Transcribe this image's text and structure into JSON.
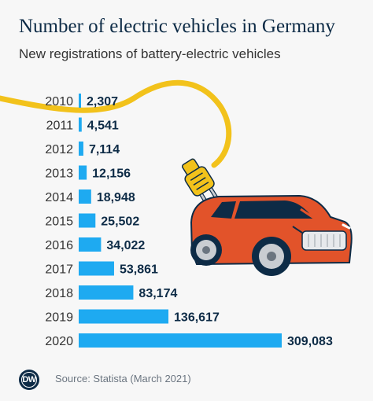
{
  "header": {
    "title": "Number of electric vehicles in Germany",
    "subtitle": "New registrations of battery-electric vehicles"
  },
  "chart_data": {
    "type": "bar",
    "orientation": "horizontal",
    "title": "Number of electric vehicles in Germany",
    "subtitle": "New registrations of battery-electric vehicles",
    "categories": [
      "2010",
      "2011",
      "2012",
      "2013",
      "2014",
      "2015",
      "2016",
      "2017",
      "2018",
      "2019",
      "2020"
    ],
    "values": [
      2307,
      4541,
      7114,
      12156,
      18948,
      25502,
      34022,
      53861,
      83174,
      136617,
      309083
    ],
    "value_labels": [
      "2,307",
      "4,541",
      "7,114",
      "12,156",
      "18,948",
      "25,502",
      "34,022",
      "53,861",
      "83,174",
      "136,617",
      "309,083"
    ],
    "xlabel": "",
    "ylabel": "",
    "xlim": [
      0,
      309083
    ],
    "grid": false,
    "legend": "none",
    "bar_color": "#1eaaf1",
    "text_color": "#0d2b46"
  },
  "footer": {
    "source": "Source: Statista (March 2021)",
    "logo_text": "DW"
  },
  "illustration": {
    "car_color": "#e2532a",
    "cable_color": "#f2c21b"
  }
}
